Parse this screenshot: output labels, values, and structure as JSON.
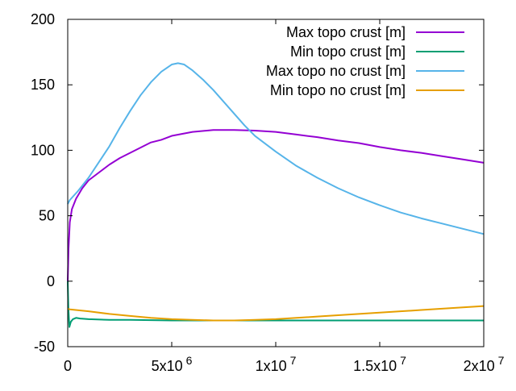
{
  "chart_data": {
    "type": "line",
    "title": "",
    "xlabel": "",
    "ylabel": "",
    "xlim": [
      0,
      20000000
    ],
    "ylim": [
      -50,
      200
    ],
    "grid": false,
    "legend_position": "top-right",
    "x_ticks": [
      {
        "value": 0,
        "mantissa": "0",
        "exponent": ""
      },
      {
        "value": 5000000,
        "mantissa": "5x10",
        "exponent": "6"
      },
      {
        "value": 10000000,
        "mantissa": "1x10",
        "exponent": "7"
      },
      {
        "value": 15000000,
        "mantissa": "1.5x10",
        "exponent": "7"
      },
      {
        "value": 20000000,
        "mantissa": "2x10",
        "exponent": "7"
      }
    ],
    "y_ticks": [
      {
        "value": -50,
        "label": "-50"
      },
      {
        "value": 0,
        "label": "0"
      },
      {
        "value": 50,
        "label": "50"
      },
      {
        "value": 100,
        "label": "100"
      },
      {
        "value": 150,
        "label": "150"
      },
      {
        "value": 200,
        "label": "200"
      }
    ],
    "series": [
      {
        "name": "Max topo crust [m]",
        "color": "#9400d3",
        "x": [
          0,
          40000,
          100000,
          200000,
          400000,
          700000,
          1000000,
          1500000,
          2000000,
          2500000,
          3000000,
          3500000,
          4000000,
          4500000,
          5000000,
          6000000,
          7000000,
          8000000,
          9000000,
          10000000,
          11000000,
          12000000,
          13000000,
          14000000,
          15000000,
          16000000,
          17000000,
          18000000,
          19000000,
          20000000
        ],
        "y": [
          0,
          25,
          45,
          55,
          63,
          71,
          77,
          83,
          89,
          94,
          98,
          102,
          106,
          108,
          111,
          114,
          115.5,
          115.5,
          115,
          114,
          112,
          110,
          107.5,
          105.5,
          102.5,
          100,
          98,
          95.5,
          93,
          90.5
        ]
      },
      {
        "name": "Min topo crust [m]",
        "color": "#009e73",
        "x": [
          0,
          30000,
          80000,
          150000,
          250000,
          400000,
          600000,
          1000000,
          2000000,
          3000000,
          5000000,
          7000000,
          10000000,
          12000000,
          15000000,
          17000000,
          20000000
        ],
        "y": [
          0,
          -20,
          -35,
          -31,
          -29,
          -28,
          -28.5,
          -29,
          -29.5,
          -29.5,
          -30,
          -30,
          -30,
          -30,
          -30,
          -30,
          -30
        ]
      },
      {
        "name": "Max topo no crust [m]",
        "color": "#56b4e9",
        "x": [
          0,
          100000,
          500000,
          1000000,
          1500000,
          2000000,
          2500000,
          3000000,
          3500000,
          4000000,
          4500000,
          5000000,
          5300000,
          5600000,
          6000000,
          6500000,
          7000000,
          7500000,
          8000000,
          8500000,
          9000000,
          10000000,
          11000000,
          12000000,
          13000000,
          14000000,
          15000000,
          16000000,
          17000000,
          18000000,
          19000000,
          20000000
        ],
        "y": [
          59,
          62,
          69,
          79,
          91,
          103,
          117,
          130,
          142,
          152,
          160,
          165.5,
          166.5,
          165.5,
          161,
          154,
          146,
          137,
          128,
          119,
          111,
          99,
          88,
          79,
          71,
          64,
          58,
          52.5,
          48,
          44,
          40,
          36
        ]
      },
      {
        "name": "Min topo no crust [m]",
        "color": "#e69f00",
        "x": [
          0,
          100000,
          1000000,
          2000000,
          3000000,
          4000000,
          5000000,
          6000000,
          7000000,
          8000000,
          9000000,
          10000000,
          11000000,
          12000000,
          13000000,
          14000000,
          15000000,
          16000000,
          17000000,
          18000000,
          19000000,
          20000000
        ],
        "y": [
          -21,
          -21.5,
          -23,
          -25,
          -26.5,
          -28,
          -29,
          -29.5,
          -30,
          -30,
          -29.5,
          -29,
          -28,
          -27,
          -26,
          -25,
          -24,
          -23,
          -22,
          -21,
          -20,
          -19
        ]
      }
    ]
  }
}
